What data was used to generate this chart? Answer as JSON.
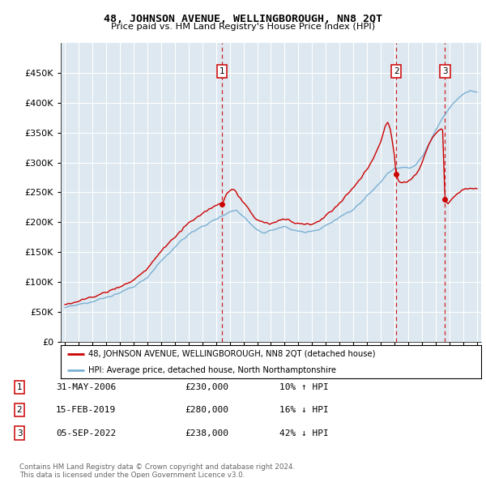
{
  "title": "48, JOHNSON AVENUE, WELLINGBOROUGH, NN8 2QT",
  "subtitle": "Price paid vs. HM Land Registry's House Price Index (HPI)",
  "legend_line1": "48, JOHNSON AVENUE, WELLINGBOROUGH, NN8 2QT (detached house)",
  "legend_line2": "HPI: Average price, detached house, North Northamptonshire",
  "sale_color": "#cc0000",
  "hpi_color": "#7ab0d4",
  "background_color": "#dde8f0",
  "transactions": [
    {
      "label": "1",
      "date": "31-MAY-2006",
      "price": 230000,
      "pct": "10%",
      "dir": "↑",
      "x_year": 2006.42
    },
    {
      "label": "2",
      "date": "15-FEB-2019",
      "price": 280000,
      "pct": "16%",
      "dir": "↓",
      "x_year": 2019.12
    },
    {
      "label": "3",
      "date": "05-SEP-2022",
      "price": 238000,
      "pct": "42%",
      "dir": "↓",
      "x_year": 2022.67
    }
  ],
  "footnote1": "Contains HM Land Registry data © Crown copyright and database right 2024.",
  "footnote2": "This data is licensed under the Open Government Licence v3.0.",
  "ylim": [
    0,
    500000
  ],
  "xlim_start": 1994.7,
  "xlim_end": 2025.3
}
